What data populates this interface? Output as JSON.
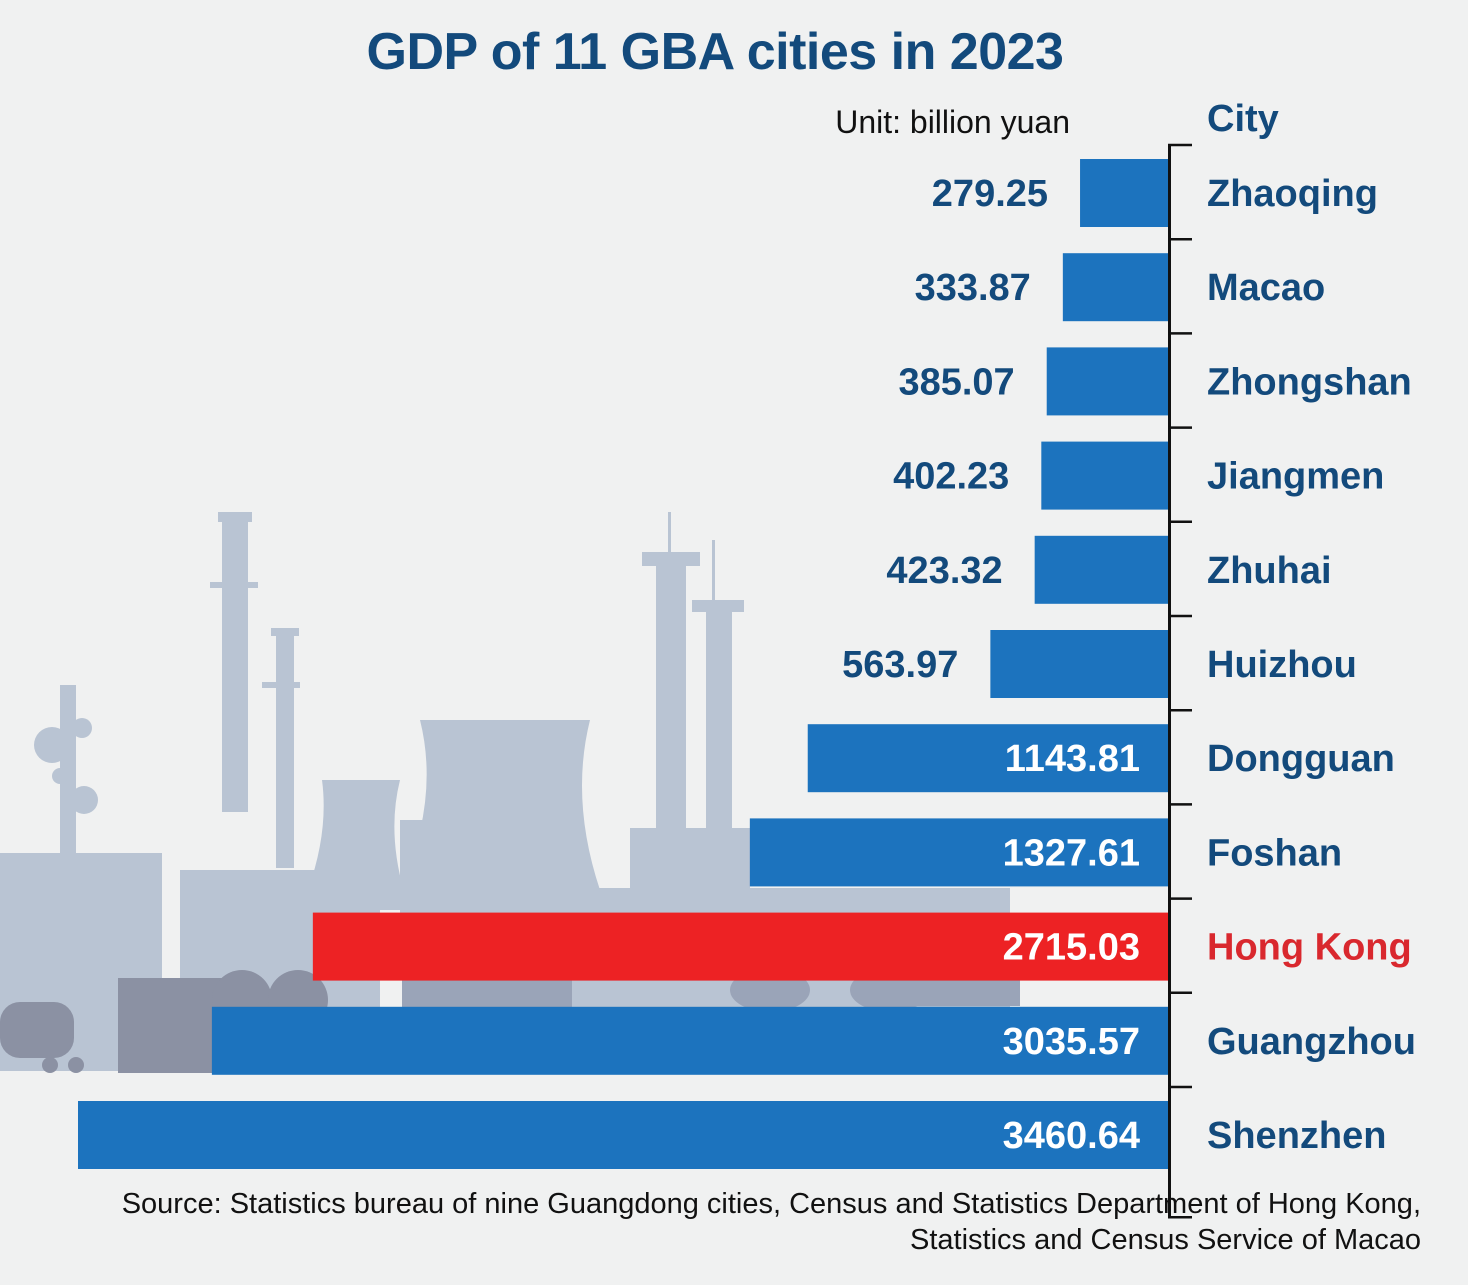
{
  "header": {
    "title": "GDP of 11 GBA cities in 2023",
    "unit": "Unit: billion yuan",
    "category_header": "City"
  },
  "footer": {
    "source_line1": "Source: Statistics bureau of nine Guangdong cities, Census and Statistics Department of Hong Kong,",
    "source_line2": "Statistics and Census Service of Macao"
  },
  "colors": {
    "bar": "#1c73be",
    "highlight_bar": "#ed2224",
    "text_dark_blue": "#134a7c",
    "highlight_text": "#d9282e",
    "background": "#f0f1f1",
    "illustration": "#b9c4d3"
  },
  "chart_data": {
    "type": "bar",
    "orientation": "horizontal",
    "title": "GDP of 11 GBA cities in 2023",
    "unit": "billion yuan",
    "categories": [
      "Zhaoqing",
      "Macao",
      "Zhongshan",
      "Jiangmen",
      "Zhuhai",
      "Huizhou",
      "Dongguan",
      "Foshan",
      "Hong Kong",
      "Guangzhou",
      "Shenzhen"
    ],
    "values": [
      279.25,
      333.87,
      385.07,
      402.23,
      423.32,
      563.97,
      1143.81,
      1327.61,
      2715.03,
      3035.57,
      3460.64
    ],
    "value_labels": [
      "279.25",
      "333.87",
      "385.07",
      "402.23",
      "423.32",
      "563.97",
      "1143.81",
      "1327.61",
      "2715.03",
      "3035.57",
      "3460.64"
    ],
    "highlight": "Hong Kong",
    "grid": false,
    "legend": "none"
  }
}
